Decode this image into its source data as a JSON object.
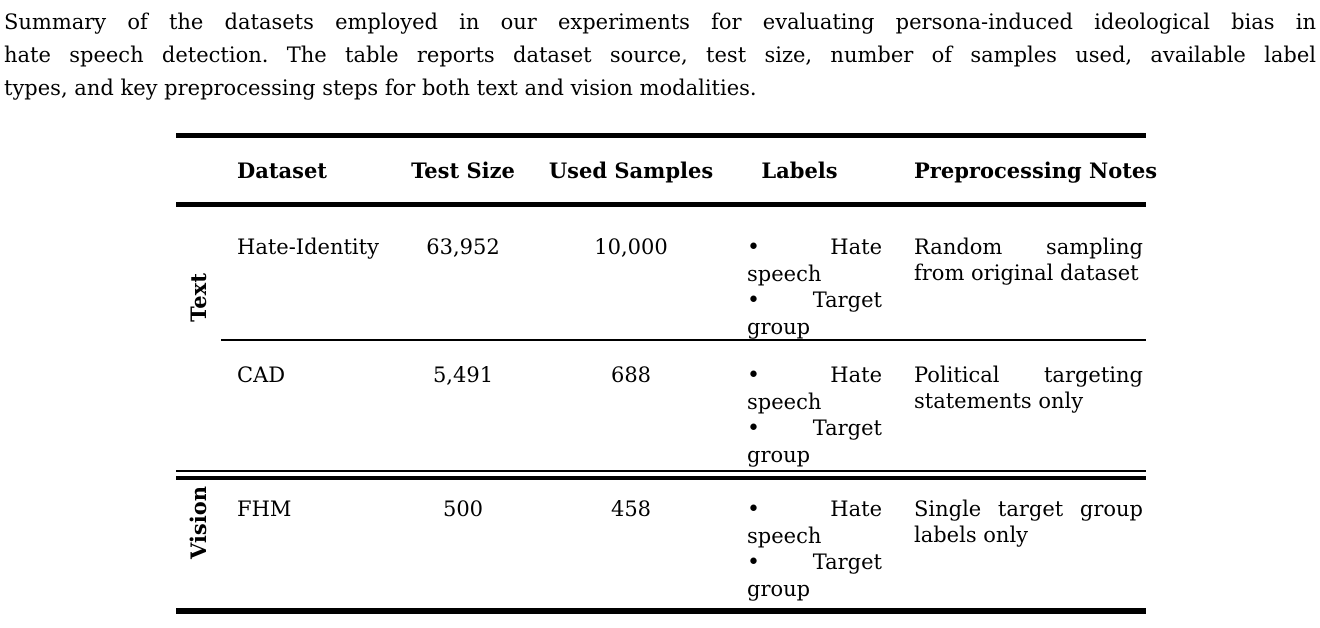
{
  "colors": {
    "text": "#000000",
    "background": "#ffffff",
    "rules": "#000000"
  },
  "caption": {
    "lines": [
      "Summary of the datasets employed in our experiments for evaluating persona-induced ideological bias in",
      "hate speech detection. The table reports dataset source, test size, number of samples used, available label",
      "types, and key preprocessing steps for both text and vision modalities."
    ]
  },
  "table": {
    "headers": {
      "dataset": "Dataset",
      "test_size": "Test Size",
      "used_samples": "Used Samples",
      "labels": "Labels",
      "preprocessing": "Preprocessing Notes"
    },
    "groups": [
      {
        "modality": "Text",
        "rows": [
          {
            "dataset": "Hate-Identity",
            "test_size": "63,952",
            "used_samples": "10,000",
            "labels": {
              "b1": "•",
              "w1": "Hate",
              "l2": "speech",
              "b2": "•",
              "w2": "Target",
              "l4": "group"
            },
            "notes": {
              "l1a": "Random",
              "l1b": "",
              "l1c": "sampling",
              "l2": "from original dataset"
            }
          },
          {
            "dataset": "CAD",
            "test_size": "5,491",
            "used_samples": "688",
            "labels": {
              "b1": "•",
              "w1": "Hate",
              "l2": "speech",
              "b2": "•",
              "w2": "Target",
              "l4": "group"
            },
            "notes": {
              "l1a": "Political",
              "l1b": "",
              "l1c": "targeting",
              "l2": "statements only"
            }
          }
        ]
      },
      {
        "modality": "Vision",
        "rows": [
          {
            "dataset": "FHM",
            "test_size": "500",
            "used_samples": "458",
            "labels": {
              "b1": "•",
              "w1": "Hate",
              "l2": "speech",
              "b2": "•",
              "w2": "Target",
              "l4": "group"
            },
            "notes": {
              "l1a": "Single",
              "l1b": "target",
              "l1c": "group",
              "l2": "labels only"
            }
          }
        ]
      }
    ]
  }
}
